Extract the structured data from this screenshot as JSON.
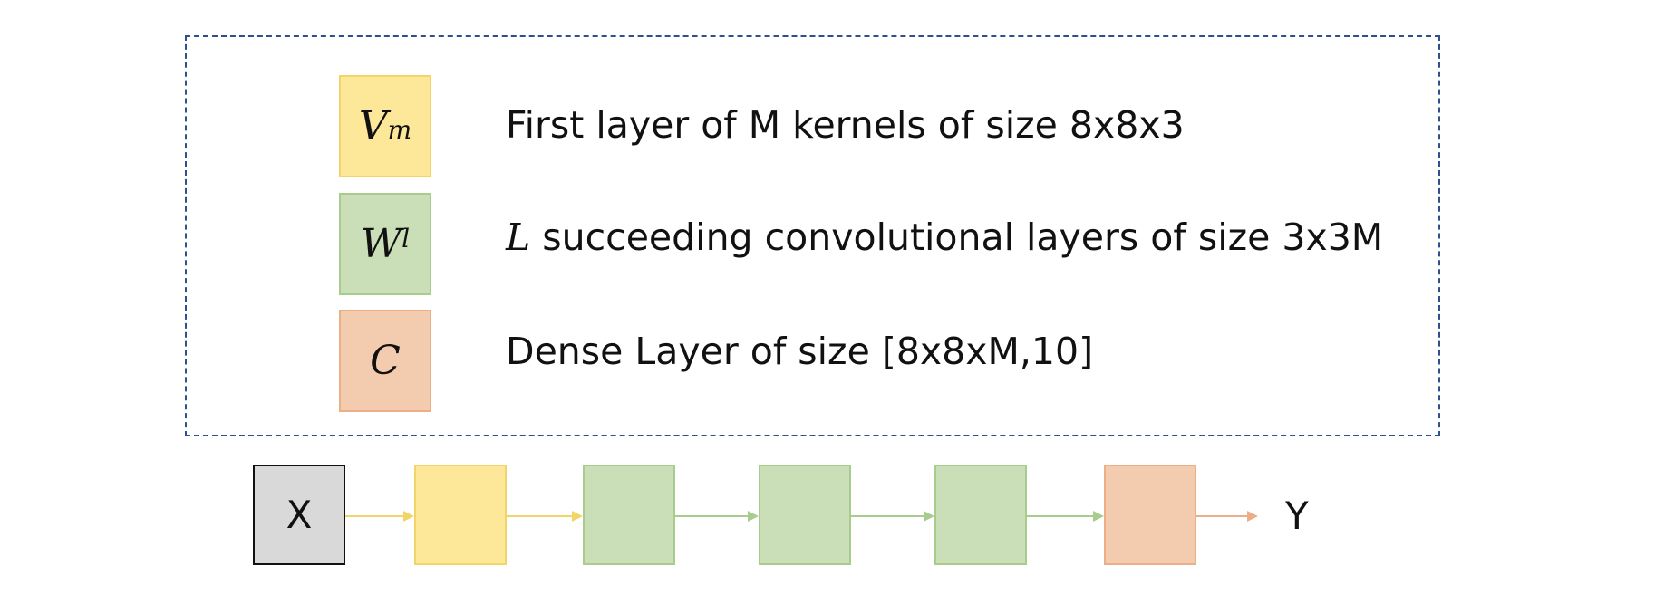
{
  "legend": {
    "items": [
      {
        "symbol_main": "V",
        "symbol_sub": "m",
        "symbol_sup": "",
        "description_math": "",
        "description": "First layer of M kernels of size 8x8x3",
        "color": "#fde89a"
      },
      {
        "symbol_main": "W",
        "symbol_sub": "",
        "symbol_sup": "l",
        "description_math": "L",
        "description": " succeeding convolutional layers of size 3x3M",
        "color": "#cadfb8"
      },
      {
        "symbol_main": "C",
        "symbol_sub": "",
        "symbol_sup": "",
        "description_math": "",
        "description": "Dense Layer of size [8x8xM,10]",
        "color": "#f3cbae"
      }
    ]
  },
  "pipeline": {
    "input_label": "X",
    "output_label": "Y",
    "nodes": [
      "yellow",
      "green",
      "green",
      "green",
      "orange"
    ]
  }
}
